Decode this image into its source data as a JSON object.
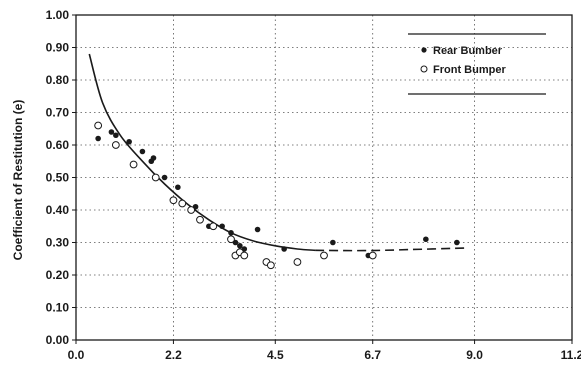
{
  "chart_data": {
    "type": "scatter",
    "title": "",
    "xlabel": "",
    "ylabel": "Coefficient of Restitution (e)",
    "xlim": [
      0,
      11.2
    ],
    "ylim": [
      0,
      1.0
    ],
    "x_ticks": [
      "0.0",
      "2.2",
      "4.5",
      "6.7",
      "9.0",
      "11.2"
    ],
    "x_tick_values": [
      0,
      2.2,
      4.5,
      6.7,
      9.0,
      11.2
    ],
    "y_ticks": [
      "0.00",
      "0.10",
      "0.20",
      "0.30",
      "0.40",
      "0.50",
      "0.60",
      "0.70",
      "0.80",
      "0.90",
      "1.00"
    ],
    "y_tick_values": [
      0,
      0.1,
      0.2,
      0.3,
      0.4,
      0.5,
      0.6,
      0.7,
      0.8,
      0.9,
      1.0
    ],
    "grid": "dotted",
    "legend_position": "top-right",
    "series": [
      {
        "name": "Rear Bumber",
        "marker": "filled-circle",
        "color": "#1a1a1a",
        "points": [
          [
            0.5,
            0.62
          ],
          [
            0.8,
            0.64
          ],
          [
            0.9,
            0.63
          ],
          [
            1.2,
            0.61
          ],
          [
            1.5,
            0.58
          ],
          [
            1.7,
            0.55
          ],
          [
            1.75,
            0.56
          ],
          [
            2.0,
            0.5
          ],
          [
            2.3,
            0.47
          ],
          [
            2.7,
            0.41
          ],
          [
            3.0,
            0.35
          ],
          [
            3.3,
            0.35
          ],
          [
            3.5,
            0.33
          ],
          [
            3.6,
            0.3
          ],
          [
            3.7,
            0.29
          ],
          [
            3.8,
            0.28
          ],
          [
            4.1,
            0.34
          ],
          [
            4.7,
            0.28
          ],
          [
            5.8,
            0.3
          ],
          [
            6.6,
            0.26
          ],
          [
            7.9,
            0.31
          ],
          [
            8.6,
            0.3
          ]
        ]
      },
      {
        "name": "Front Bumper",
        "marker": "open-circle",
        "color": "#1a1a1a",
        "points": [
          [
            0.5,
            0.66
          ],
          [
            0.9,
            0.6
          ],
          [
            1.3,
            0.54
          ],
          [
            1.8,
            0.5
          ],
          [
            2.2,
            0.43
          ],
          [
            2.4,
            0.42
          ],
          [
            2.6,
            0.4
          ],
          [
            2.8,
            0.37
          ],
          [
            3.1,
            0.35
          ],
          [
            3.5,
            0.31
          ],
          [
            3.6,
            0.26
          ],
          [
            3.7,
            0.27
          ],
          [
            3.8,
            0.26
          ],
          [
            4.3,
            0.24
          ],
          [
            4.4,
            0.23
          ],
          [
            5.0,
            0.24
          ],
          [
            5.6,
            0.26
          ],
          [
            6.7,
            0.26
          ]
        ]
      }
    ],
    "curves": [
      {
        "style": "solid",
        "points": [
          [
            0.3,
            0.88
          ],
          [
            0.6,
            0.73
          ],
          [
            1.0,
            0.63
          ],
          [
            1.5,
            0.55
          ],
          [
            2.0,
            0.48
          ],
          [
            2.5,
            0.42
          ],
          [
            3.0,
            0.37
          ],
          [
            3.5,
            0.33
          ],
          [
            4.0,
            0.305
          ],
          [
            4.5,
            0.29
          ],
          [
            5.0,
            0.28
          ],
          [
            5.4,
            0.276
          ]
        ]
      },
      {
        "style": "dashed",
        "points": [
          [
            5.4,
            0.276
          ],
          [
            6.5,
            0.275
          ],
          [
            7.5,
            0.278
          ],
          [
            8.8,
            0.283
          ]
        ]
      }
    ]
  }
}
